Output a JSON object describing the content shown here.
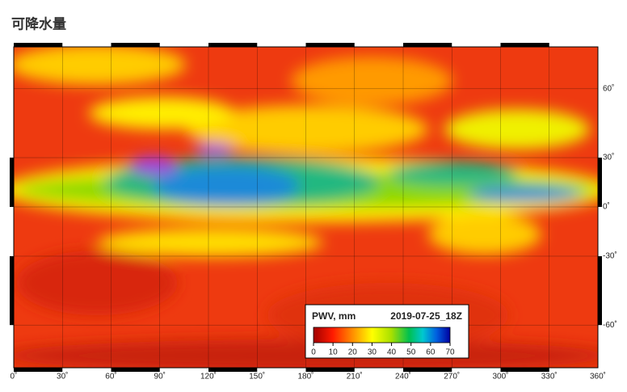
{
  "title": "可降水量",
  "map": {
    "lon_ticks": [
      {
        "value": 0,
        "label": "0˚"
      },
      {
        "value": 30,
        "label": "30˚"
      },
      {
        "value": 60,
        "label": "60˚"
      },
      {
        "value": 90,
        "label": "90˚"
      },
      {
        "value": 120,
        "label": "120˚"
      },
      {
        "value": 150,
        "label": "150˚"
      },
      {
        "value": 180,
        "label": "180˚"
      },
      {
        "value": 210,
        "label": "210˚"
      },
      {
        "value": 240,
        "label": "240˚"
      },
      {
        "value": 270,
        "label": "270˚"
      },
      {
        "value": 300,
        "label": "300˚"
      },
      {
        "value": 330,
        "label": "330˚"
      },
      {
        "value": 360,
        "label": "360˚"
      }
    ],
    "lat_ticks": [
      {
        "value": 60,
        "label": "60˚"
      },
      {
        "value": 30,
        "label": "30˚"
      },
      {
        "value": 0,
        "label": "0˚"
      },
      {
        "value": -30,
        "label": "-30˚"
      },
      {
        "value": -60,
        "label": "-60˚"
      }
    ]
  },
  "legend": {
    "label": "PWV, mm",
    "timestamp": "2019-07-25_18Z",
    "ticks": [
      0,
      10,
      20,
      30,
      40,
      50,
      60,
      70
    ]
  }
}
